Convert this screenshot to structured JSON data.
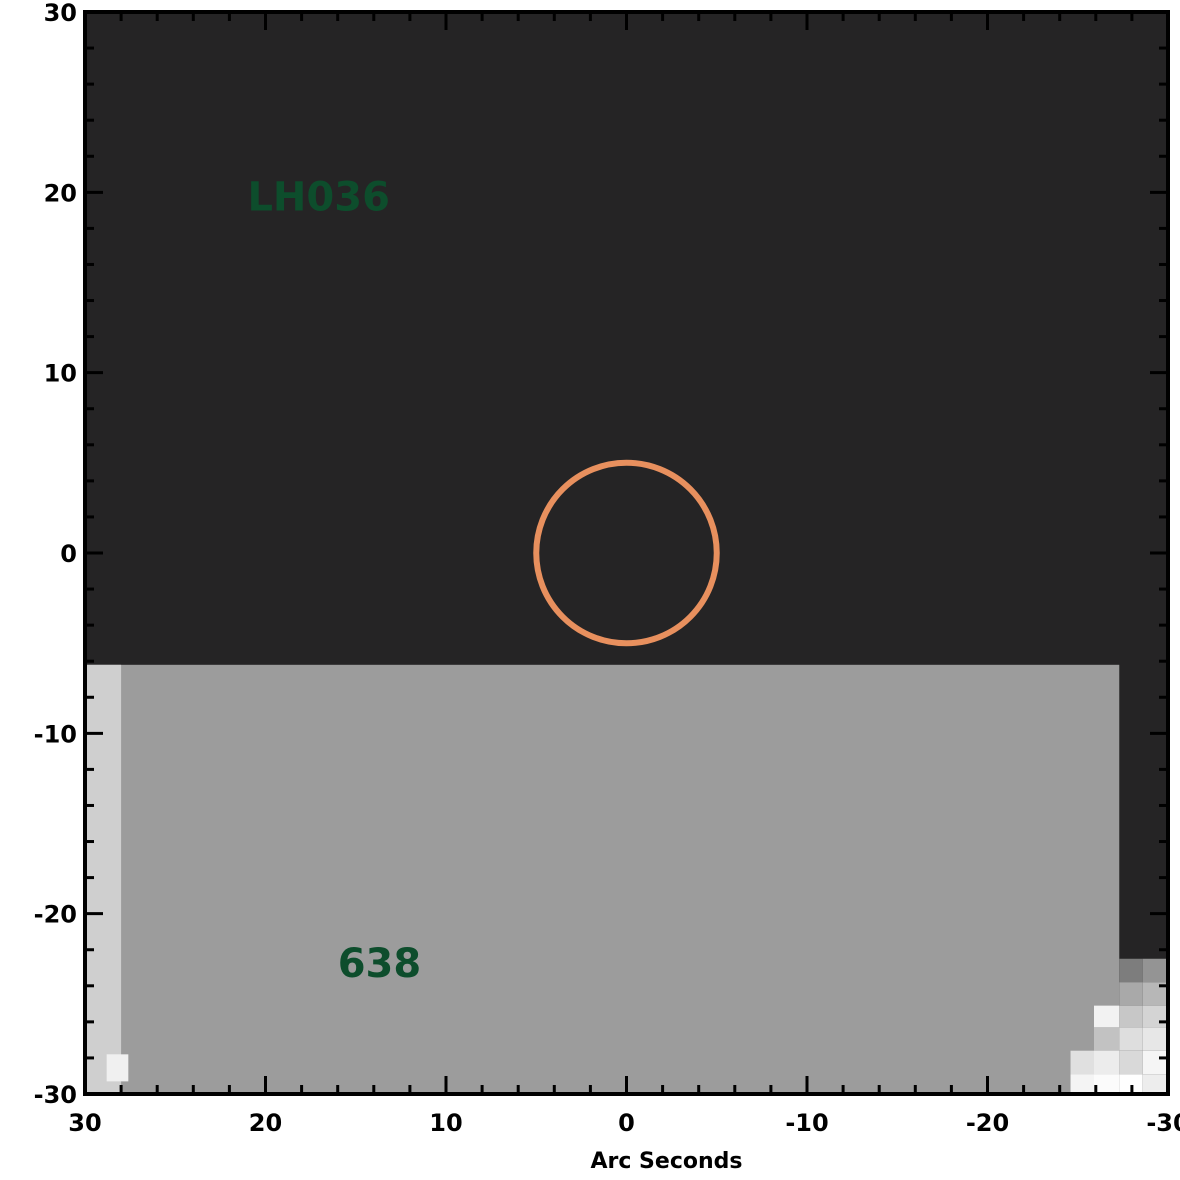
{
  "chart_data": {
    "type": "heatmap",
    "title": "",
    "xlabel": "Arc Seconds",
    "ylabel": "",
    "xlim": [
      30,
      -30
    ],
    "ylim": [
      -30,
      30
    ],
    "x_ticks": [
      30,
      20,
      10,
      0,
      -10,
      -20,
      -30
    ],
    "y_ticks": [
      30,
      20,
      10,
      0,
      -10,
      -20,
      -30
    ],
    "x_tick_labels": [
      "30",
      "20",
      "10",
      "0",
      "-10",
      "-20",
      "-30"
    ],
    "y_tick_labels": [
      "30",
      "20",
      "10",
      "0",
      "-10",
      "-20",
      "-30"
    ],
    "grid": false,
    "annotations": [
      {
        "text": "LH036",
        "x": 21,
        "y": 19
      },
      {
        "text": "638",
        "x": 16,
        "y": -23.5
      }
    ],
    "aperture": {
      "center": [
        0,
        0
      ],
      "radius": 5,
      "color": "#e8905e"
    },
    "image_regions": [
      {
        "x0": 30,
        "x1": -30,
        "y0": -30,
        "y1": 30,
        "gray": "#252425"
      },
      {
        "x0": 30,
        "x1": -27.3,
        "y0": -30,
        "y1": -6.2,
        "gray": "#9c9c9c"
      },
      {
        "x0": 30,
        "x1": 28,
        "y0": -30,
        "y1": -6.2,
        "gray": "#cfcfcf"
      },
      {
        "x0": 28.8,
        "x1": 27.6,
        "y0": -29.3,
        "y1": -27.8,
        "gray": "#f0f0f0"
      },
      {
        "x0": -27.3,
        "x1": -28.6,
        "y0": -23.8,
        "y1": -22.5,
        "gray": "#7d7d7d"
      },
      {
        "x0": -28.6,
        "x1": -30,
        "y0": -23.8,
        "y1": -22.5,
        "gray": "#949494"
      },
      {
        "x0": -27.3,
        "x1": -28.6,
        "y0": -25.1,
        "y1": -23.8,
        "gray": "#a9a9a9"
      },
      {
        "x0": -28.6,
        "x1": -30,
        "y0": -25.1,
        "y1": -23.8,
        "gray": "#b7b7b7"
      },
      {
        "x0": -25.9,
        "x1": -27.3,
        "y0": -26.3,
        "y1": -25.1,
        "gray": "#f2f2f2"
      },
      {
        "x0": -27.3,
        "x1": -28.6,
        "y0": -26.3,
        "y1": -25.1,
        "gray": "#c7c7c7"
      },
      {
        "x0": -28.6,
        "x1": -30,
        "y0": -26.3,
        "y1": -25.1,
        "gray": "#d4d4d4"
      },
      {
        "x0": -25.9,
        "x1": -27.3,
        "y0": -27.6,
        "y1": -26.3,
        "gray": "#c2c2c2"
      },
      {
        "x0": -27.3,
        "x1": -28.6,
        "y0": -27.6,
        "y1": -26.3,
        "gray": "#dedede"
      },
      {
        "x0": -28.6,
        "x1": -30,
        "y0": -27.6,
        "y1": -26.3,
        "gray": "#e7e7e7"
      },
      {
        "x0": -24.6,
        "x1": -25.9,
        "y0": -28.9,
        "y1": -27.6,
        "gray": "#e0e0e0"
      },
      {
        "x0": -25.9,
        "x1": -27.3,
        "y0": -28.9,
        "y1": -27.6,
        "gray": "#ececec"
      },
      {
        "x0": -27.3,
        "x1": -28.6,
        "y0": -28.9,
        "y1": -27.6,
        "gray": "#d9d9d9"
      },
      {
        "x0": -28.6,
        "x1": -30,
        "y0": -28.9,
        "y1": -27.6,
        "gray": "#f5f5f5"
      },
      {
        "x0": -24.6,
        "x1": -25.9,
        "y0": -30,
        "y1": -28.9,
        "gray": "#f4f4f4"
      },
      {
        "x0": -25.9,
        "x1": -27.3,
        "y0": -30,
        "y1": -28.9,
        "gray": "#fbfbfb"
      },
      {
        "x0": -27.3,
        "x1": -28.6,
        "y0": -30,
        "y1": -28.9,
        "gray": "#ffffff"
      },
      {
        "x0": -28.6,
        "x1": -30,
        "y0": -30,
        "y1": -28.9,
        "gray": "#ededed"
      }
    ]
  }
}
